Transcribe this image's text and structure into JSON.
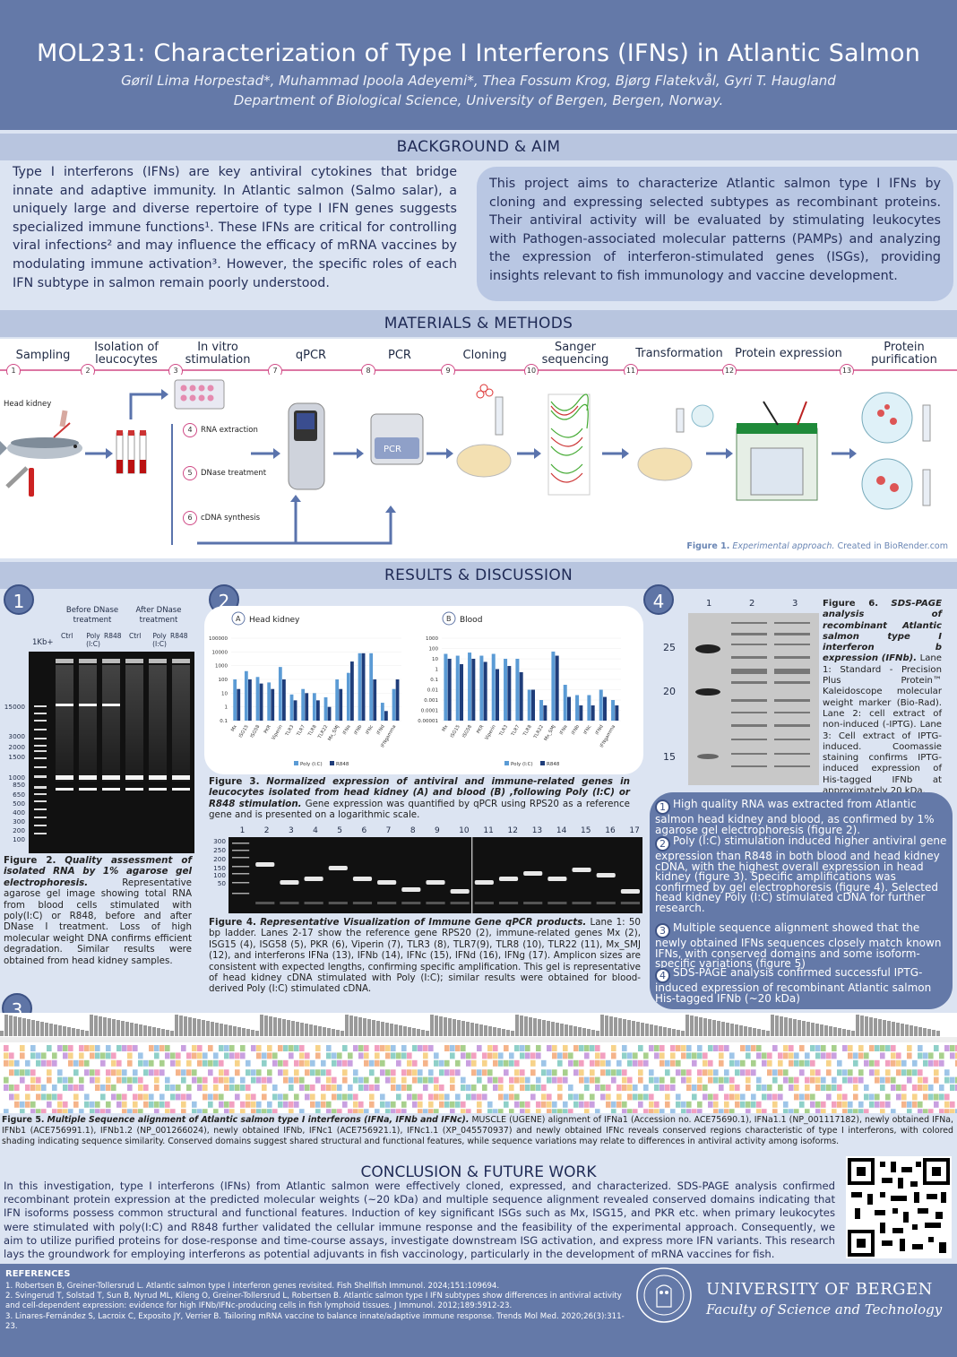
{
  "header": {
    "title": "MOL231: Characterization of Type I Interferons (IFNs) in Atlantic Salmon",
    "authors": "Gøril Lima Horpestad*, Muhammad Ipoola Adeyemi*, Thea Fossum Krog, Bjørg Flatekvål, Gyri T. Haugland",
    "department": "Department of Biological Science, University of Bergen, Bergen, Norway."
  },
  "background": {
    "heading": "BACKGROUND & AIM",
    "left_text": "Type I interferons (IFNs) are key antiviral cytokines that bridge innate and adaptive immunity. In Atlantic salmon (Salmo salar), a uniquely large and diverse repertoire of type I IFN genes suggests specialized immune functions¹. These IFNs are critical for controlling viral infections² and may influence the efficacy of mRNA vaccines by modulating immune activation³. However, the specific roles of each IFN subtype in salmon remain poorly understood.",
    "right_text": "This project aims to characterize Atlantic salmon type I IFNs by cloning and expressing selected subtypes as recombinant proteins. Their antiviral activity will be evaluated by stimulating leukocytes with Pathogen-associated molecular patterns (PAMPs) and analyzing the expression of interferon-stimulated genes (ISGs), providing insights relevant to fish immunology and vaccine development."
  },
  "methods": {
    "heading": "MATERIALS & METHODS",
    "steps": [
      {
        "label": "Sampling",
        "num": "1"
      },
      {
        "label": "Isolation of leucocytes",
        "num": "2"
      },
      {
        "label": "In vitro stimulation",
        "num": "3"
      },
      {
        "label": "qPCR",
        "num": "7"
      },
      {
        "label": "PCR",
        "num": "8"
      },
      {
        "label": "Cloning",
        "num": "9"
      },
      {
        "label": "Sanger sequencing",
        "num": "10"
      },
      {
        "label": "Transformation",
        "num": "11"
      },
      {
        "label": "Protein expression",
        "num": "12"
      },
      {
        "label": "Protein purification",
        "num": "13"
      }
    ],
    "substeps": [
      {
        "num": "4",
        "label": "RNA extraction"
      },
      {
        "num": "5",
        "label": "DNase treatment"
      },
      {
        "num": "6",
        "label": "cDNA synthesis"
      }
    ],
    "head_kidney_label": "Head kidney",
    "pcr_label": "PCR",
    "figure_caption_bold": "Figure 1.",
    "figure_caption_italic": "Experimental approach.",
    "figure_caption_rest": "Created in BioRender.com"
  },
  "results": {
    "heading": "RESULTS & DISCUSSION",
    "panel_numbers": [
      "1",
      "2",
      "3",
      "4"
    ],
    "fig2": {
      "top_labels": [
        "Before DNase treatment",
        "After DNase treatment"
      ],
      "lane_labels": [
        "Ctrl",
        "Poly (I:C)",
        "R848",
        "Ctrl",
        "Poly (I:C)",
        "R848"
      ],
      "ladder_label": "1Kb+",
      "markers": [
        "15000",
        "3000",
        "2000",
        "1500",
        "1000",
        "850",
        "650",
        "500",
        "400",
        "300",
        "200",
        "100"
      ],
      "caption_bold": "Figure 2.",
      "caption_italic": "Quality assessment of isolated RNA by 1% agarose gel electrophoresis.",
      "caption_rest": "Representative agarose gel image showing total RNA from blood cells stimulated with poly(I:C) or R848, before and after DNase I treatment. Loss of high molecular weight DNA confirms efficient degradation. Similar results were obtained from head kidney samples."
    },
    "fig3": {
      "caption_bold": "Figure 3.",
      "caption_italic": "Normalized expression of antiviral and immune-related genes in leucocytes isolated from head kidney (A) and blood (B) ,following Poly (I:C) or R848 stimulation.",
      "caption_rest": "Gene expression was quantified by qPCR using RPS20 as a reference gene and is presented on a logarithmic scale."
    },
    "fig4": {
      "lanes": [
        "1",
        "2",
        "3",
        "4",
        "5",
        "6",
        "7",
        "8",
        "9",
        "10",
        "11",
        "12",
        "13",
        "14",
        "15",
        "16",
        "17"
      ],
      "markers": [
        "300",
        "250",
        "200",
        "150",
        "100",
        "50"
      ],
      "caption_bold": "Figure 4.",
      "caption_italic": "Representative Visualization of Immune Gene qPCR products.",
      "caption_rest": "Lane 1: 50 bp ladder. Lanes 2-17 show the reference gene RPS20 (2), immune-related genes Mx (2), ISG15 (4), ISG58 (5), PKR (6), Viperin (7), TLR3 (8), TLR7(9), TLR8 (10), TLR22 (11), Mx_SMJ (12), and interferons IFNa (13), IFNb (14), IFNc (15), IFNd (16), IFNg (17). Amplicon sizes are consistent with expected lengths, confirming specific amplification. This gel is representative of head kidney cDNA stimulated with Poly (I:C); similar results were obtained for blood-derived Poly (I:C) stimulated cDNA."
    },
    "fig5": {
      "caption_bold": "Figure 5.",
      "caption_italic": "Multiple Sequence alignment of Atlantic salmon type I interferons (IFNa, IFNb and IFNc).",
      "caption_rest": "MUSCLE (UGENE) alignment of IFNa1 (Accession no. ACE75690.1), IFNa1.1 (NP_001117182), newly obtained IFNa, IFNb1 (ACE756991.1), IFNb1.2 (NP_001266024), newly obtained IFNb, IFNc1 (ACE756921.1), IFNc1.1 (XP_045570937) and newly obtained IFNc reveals conserved regions characteristic of type I interferons, with colored shading indicating sequence similarity. Conserved domains suggest shared structural and functional features, while sequence variations may relate to differences in antiviral activity among isoforms."
    },
    "fig6": {
      "lanes": [
        "1",
        "2",
        "3"
      ],
      "markers": [
        "25",
        "20",
        "15"
      ],
      "caption_bold": "Figure 6.",
      "caption_italic": "SDS-PAGE analysis of recombinant Atlantic salmon type I interferon b expression (IFNb).",
      "caption_rest": "Lane 1: Standard - Precision Plus Protein™ Kaleidoscope molecular weight marker (Bio-Rad). Lane 2: cell extract of non-induced (-IPTG). Lane 3: Cell extract of IPTG-induced. Coomassie staining confirms IPTG-induced expression of His-tagged IFNb at approximately 20 kDa."
    },
    "summary": [
      {
        "num": "1",
        "text": "High quality RNA was extracted from Atlantic salmon head kidney and blood, as confirmed by 1% agarose gel electrophoresis (figure 2)."
      },
      {
        "num": "2",
        "text": "Poly (I:C) stimulation induced higher antiviral gene expression than R848 in both blood and head kidney cDNA, with the highest overall expression in head kidney (figure 3). Specific amplifications was confirmed by gel electrophoresis (figure 4). Selected head kidney Poly (I:C) stimulated cDNA for further research."
      },
      {
        "num": "3",
        "text": "Multiple sequence alignment showed that the newly obtained IFNs sequences closely match known IFNs, with conserved domains and some isoform-specific variations (figure 5)"
      },
      {
        "num": "4",
        "text": "SDS-PAGE analysis confirmed successful IPTG-induced expression of recombinant Atlantic salmon His-tagged IFNb (~20 kDa)"
      }
    ]
  },
  "chart_data": [
    {
      "type": "bar",
      "panel": "A",
      "title": "Head kidney",
      "yscale": "log",
      "ylim": [
        0.1,
        100000
      ],
      "yticks": [
        "100000",
        "10000",
        "1000",
        "100",
        "10",
        "1",
        "0.1"
      ],
      "categories": [
        "Mx",
        "ISG15",
        "ISG58",
        "PKR",
        "Viperin",
        "TLR3",
        "TLR7",
        "TLR8",
        "TLR22",
        "Mx_SMJ",
        "IFNa",
        "IFNb",
        "IFNc",
        "IFNd",
        "IFNgamma"
      ],
      "series": [
        {
          "name": "Poly (I:C)",
          "color": "#5b9bd5",
          "values": [
            100,
            400,
            150,
            60,
            800,
            8,
            20,
            10,
            5,
            100,
            300,
            8000,
            8000,
            2,
            20
          ]
        },
        {
          "name": "R848",
          "color": "#1f3d7a",
          "values": [
            20,
            100,
            50,
            20,
            100,
            3,
            10,
            3,
            1,
            20,
            2000,
            8000,
            100,
            0.5,
            100
          ]
        }
      ]
    },
    {
      "type": "bar",
      "panel": "B",
      "title": "Blood",
      "yscale": "log",
      "ylim": [
        1e-05,
        1000
      ],
      "yticks": [
        "1000",
        "100",
        "10",
        "1",
        "0.1",
        "0.01",
        "0.001",
        "0.0001",
        "0.00001"
      ],
      "categories": [
        "Mx",
        "ISG15",
        "ISG58",
        "PKR",
        "Viperin",
        "TLR3",
        "TLR7",
        "TLR8",
        "TLR22",
        "Mx_SMJ",
        "IFNa",
        "IFNb",
        "IFNc",
        "IFNd",
        "IFNgamma"
      ],
      "series": [
        {
          "name": "Poly (I:C)",
          "color": "#5b9bd5",
          "values": [
            30,
            20,
            40,
            20,
            30,
            10,
            10,
            0.01,
            0.001,
            50,
            0.03,
            0.003,
            0.003,
            0.01,
            0.001
          ]
        },
        {
          "name": "R848",
          "color": "#1f3d7a",
          "values": [
            10,
            3,
            10,
            5,
            1,
            2,
            0.5,
            0.01,
            0.0003,
            20,
            0.002,
            0.0003,
            0.0003,
            0.002,
            0.0003
          ]
        }
      ]
    }
  ],
  "conclusion": {
    "heading": "CONCLUSION & FUTURE WORK",
    "text": "In this investigation, type I interferons (IFNs) from Atlantic salmon were effectively cloned, expressed, and characterized. SDS-PAGE analysis confirmed recombinant protein expression at the predicted molecular weights (~20 kDa) and multiple sequence alignment revealed conserved domains indicating that IFN isoforms possess common structural and functional features. Induction of key significant ISGs such as Mx, ISG15, and PKR etc. when primary leukocytes were stimulated with poly(I:C) and R848 further validated the cellular immune response and the feasibility of the experimental approach. Consequently, we aim to utilize purified proteins for dose-response and time-course assays, investigate downstream ISG activation, and express more IFN variants. This research lays the groundwork for employing interferons as potential adjuvants in fish vaccinology, particularly in the development of mRNA vaccines for fish."
  },
  "references": {
    "heading": "REFERENCES",
    "items": [
      "1. Robertsen B, Greiner-Tollersrud L. Atlantic salmon type I interferon genes revisited. Fish Shellfish Immunol. 2024;151:109694.",
      "2. Svingerud T, Solstad T, Sun B, Nyrud ML, Kileng O, Greiner-Tollersrud L, Robertsen B. Atlantic salmon type I IFN subtypes show differences in antiviral activity and cell-dependent expression: evidence for high IFNb/IFNc-producing cells in fish lymphoid tissues. J Immunol. 2012;189:5912-23.",
      "3. Linares-Fernández S, Lacroix C, Exposito JY, Verrier B. Tailoring mRNA vaccine to balance innate/adaptive immune response. Trends Mol Med. 2020;26(3):311-23."
    ],
    "university": "UNIVERSITY OF BERGEN",
    "faculty": "Faculty of Science and Technology",
    "seal_text": "UNIVERSITAS BERGENSIS"
  }
}
